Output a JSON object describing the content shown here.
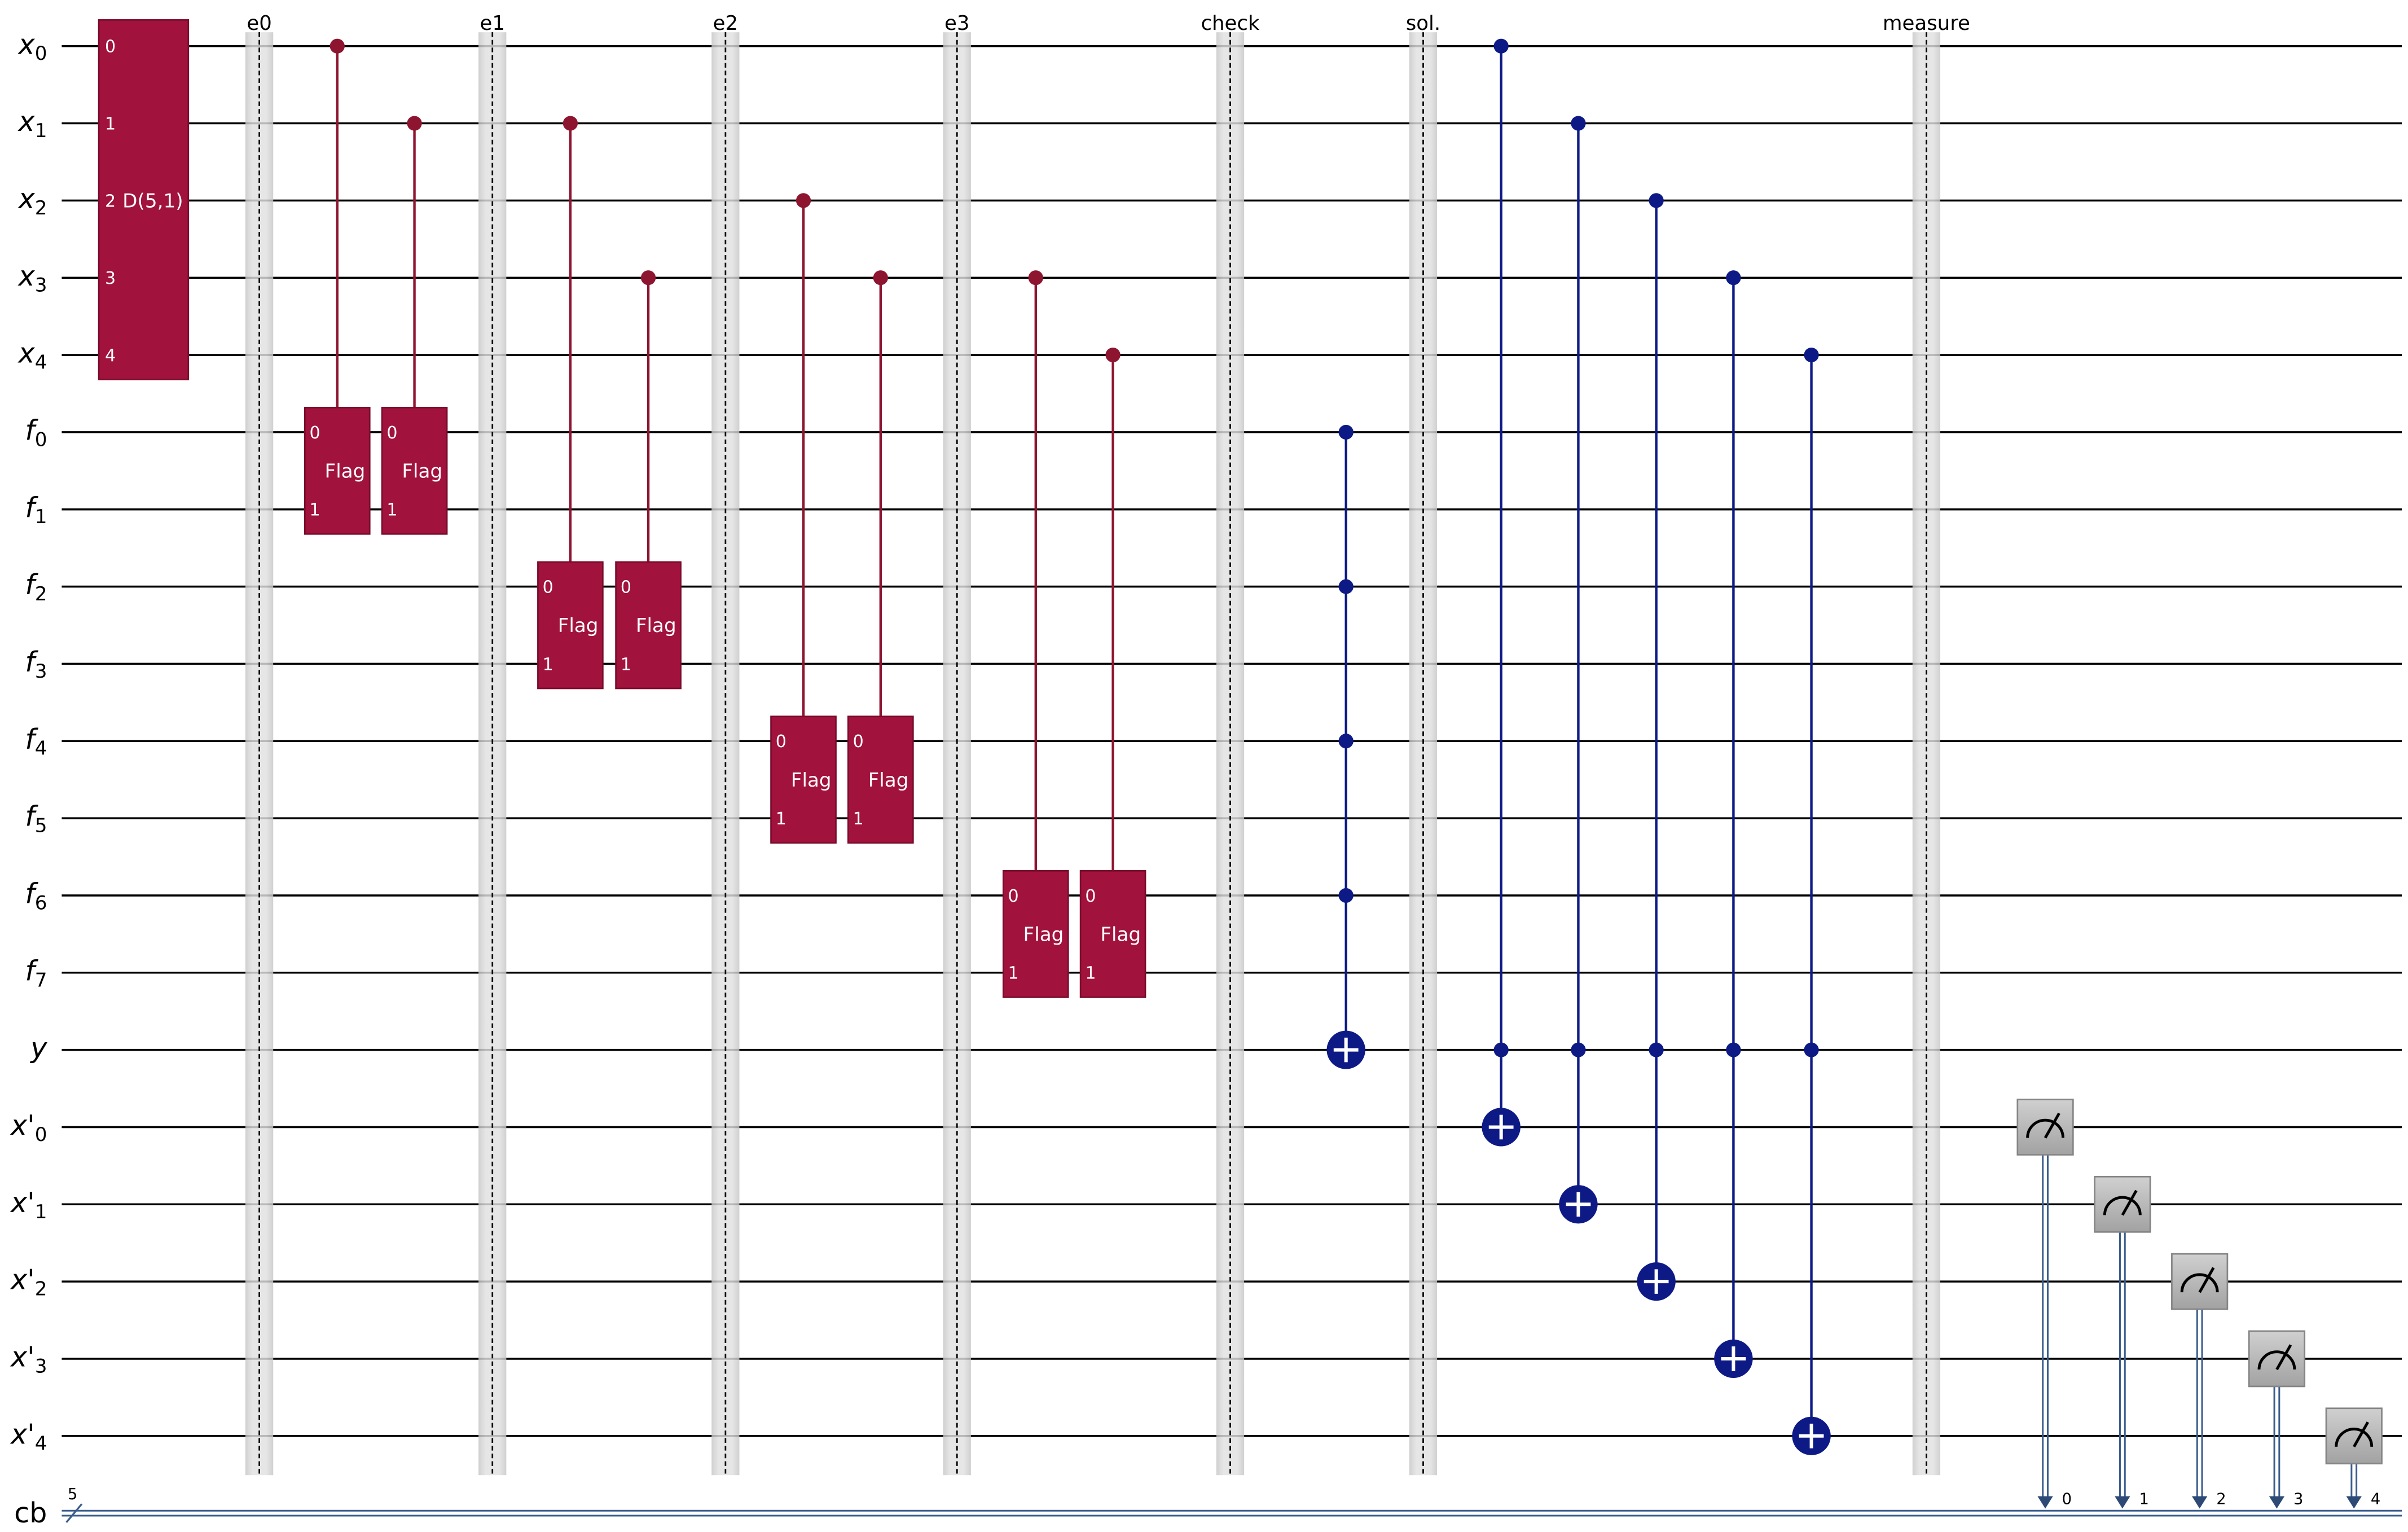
{
  "circuit": {
    "quantum_wires": [
      {
        "base": "x",
        "sub": "0"
      },
      {
        "base": "x",
        "sub": "1"
      },
      {
        "base": "x",
        "sub": "2"
      },
      {
        "base": "x",
        "sub": "3"
      },
      {
        "base": "x",
        "sub": "4"
      },
      {
        "base": "f",
        "sub": "0"
      },
      {
        "base": "f",
        "sub": "1"
      },
      {
        "base": "f",
        "sub": "2"
      },
      {
        "base": "f",
        "sub": "3"
      },
      {
        "base": "f",
        "sub": "4"
      },
      {
        "base": "f",
        "sub": "5"
      },
      {
        "base": "f",
        "sub": "6"
      },
      {
        "base": "f",
        "sub": "7"
      },
      {
        "base": "y"
      },
      {
        "base": "x'",
        "sub": "0"
      },
      {
        "base": "x'",
        "sub": "1"
      },
      {
        "base": "x'",
        "sub": "2"
      },
      {
        "base": "x'",
        "sub": "3"
      },
      {
        "base": "x'",
        "sub": "4"
      }
    ],
    "classical_wire": {
      "label": "cb",
      "size": "5"
    },
    "operations": [
      {
        "gate": {
          "name": "D(5,1)",
          "qubits": [
            0,
            1,
            2,
            3,
            4
          ],
          "pins": [
            "0",
            "1",
            "2",
            "3",
            "4"
          ]
        }
      },
      {
        "barrier": {
          "label": "e0"
        }
      },
      {
        "controlled_gate": {
          "name": "Flag",
          "control": 0,
          "targets": [
            5,
            6
          ],
          "pins": [
            "0",
            "1"
          ]
        }
      },
      {
        "controlled_gate": {
          "name": "Flag",
          "control": 1,
          "targets": [
            5,
            6
          ],
          "pins": [
            "0",
            "1"
          ]
        }
      },
      {
        "barrier": {
          "label": "e1"
        }
      },
      {
        "controlled_gate": {
          "name": "Flag",
          "control": 1,
          "targets": [
            7,
            8
          ],
          "pins": [
            "0",
            "1"
          ]
        }
      },
      {
        "controlled_gate": {
          "name": "Flag",
          "control": 3,
          "targets": [
            7,
            8
          ],
          "pins": [
            "0",
            "1"
          ]
        }
      },
      {
        "barrier": {
          "label": "e2"
        }
      },
      {
        "controlled_gate": {
          "name": "Flag",
          "control": 2,
          "targets": [
            9,
            10
          ],
          "pins": [
            "0",
            "1"
          ]
        }
      },
      {
        "controlled_gate": {
          "name": "Flag",
          "control": 3,
          "targets": [
            9,
            10
          ],
          "pins": [
            "0",
            "1"
          ]
        }
      },
      {
        "barrier": {
          "label": "e3"
        }
      },
      {
        "controlled_gate": {
          "name": "Flag",
          "control": 3,
          "targets": [
            11,
            12
          ],
          "pins": [
            "0",
            "1"
          ]
        }
      },
      {
        "controlled_gate": {
          "name": "Flag",
          "control": 4,
          "targets": [
            11,
            12
          ],
          "pins": [
            "0",
            "1"
          ]
        }
      },
      {
        "barrier": {
          "label": "check"
        }
      },
      {
        "mcx": {
          "controls": [
            5,
            7,
            9,
            11
          ],
          "target": 13
        }
      },
      {
        "barrier": {
          "label": "sol."
        }
      },
      {
        "mcx": {
          "controls": [
            0,
            13
          ],
          "target": 14
        }
      },
      {
        "mcx": {
          "controls": [
            1,
            13
          ],
          "target": 15
        }
      },
      {
        "mcx": {
          "controls": [
            2,
            13
          ],
          "target": 16
        }
      },
      {
        "mcx": {
          "controls": [
            3,
            13
          ],
          "target": 17
        }
      },
      {
        "mcx": {
          "controls": [
            4,
            13
          ],
          "target": 18
        }
      },
      {
        "barrier": {
          "label": "measure"
        }
      },
      {
        "measure": {
          "qubit": 14,
          "clbit": "0"
        }
      },
      {
        "measure": {
          "qubit": 15,
          "clbit": "1"
        }
      },
      {
        "measure": {
          "qubit": 16,
          "clbit": "2"
        }
      },
      {
        "measure": {
          "qubit": 17,
          "clbit": "3"
        }
      },
      {
        "measure": {
          "qubit": 18,
          "clbit": "4"
        }
      }
    ],
    "colors": {
      "gate_fill": "#a1123d",
      "gate_border": "#7a0c2c",
      "control_red": "#8e1530",
      "cx_navy": "#0d1a86",
      "classical": "#3a5d8c",
      "classical_arrow": "#2c4a75",
      "measure_border": "#858585",
      "wire": "#000000"
    }
  }
}
